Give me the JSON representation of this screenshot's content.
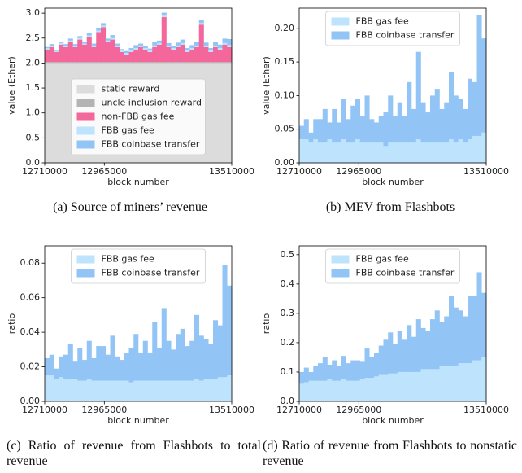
{
  "charts": [
    {
      "chart_data": {
        "type": "histogram",
        "caption": "(a) Source of miners’ revenue",
        "xlabel": "block number",
        "ylabel": "value (Ether)",
        "legend": "lower center",
        "bins": [
          12710000,
          12730000,
          12750000,
          12770000,
          12790000,
          12810000,
          12830000,
          12850000,
          12870000,
          12890000,
          12910000,
          12930000,
          12950000,
          12970000,
          12990000,
          13010000,
          13030000,
          13050000,
          13070000,
          13090000,
          13110000,
          13130000,
          13150000,
          13170000,
          13190000,
          13210000,
          13230000,
          13250000,
          13270000,
          13290000,
          13310000,
          13330000,
          13350000,
          13370000,
          13390000,
          13410000,
          13430000,
          13450000,
          13470000,
          13490000,
          13510000
        ],
        "xlim": [
          12710000,
          13510000
        ],
        "xticks": [
          12710000,
          12965000,
          13510000
        ],
        "ylim": [
          0,
          3.1
        ],
        "yticks": [
          {
            "value": 0,
            "label": "0.0"
          },
          {
            "value": 0.5,
            "label": "0.5"
          },
          {
            "value": 1,
            "label": "1.0"
          },
          {
            "value": 1.5,
            "label": "1.5"
          },
          {
            "value": 2,
            "label": "2.0"
          },
          {
            "value": 2.5,
            "label": "2.5"
          },
          {
            "value": 3,
            "label": "3.0"
          }
        ],
        "series": [
          {
            "name": "static reward",
            "color": "#dcdcdc",
            "values": [
              2,
              2,
              2,
              2,
              2,
              2,
              2,
              2,
              2,
              2,
              2,
              2,
              2,
              2,
              2,
              2,
              2,
              2,
              2,
              2,
              2,
              2,
              2,
              2,
              2,
              2,
              2,
              2,
              2,
              2,
              2,
              2,
              2,
              2,
              2,
              2,
              2,
              2,
              2,
              2
            ]
          },
          {
            "name": "uncle inclusion reward",
            "color": "#b4b4b4",
            "values": [
              0.02,
              0.02,
              0.02,
              0.02,
              0.02,
              0.02,
              0.02,
              0.02,
              0.02,
              0.02,
              0.02,
              0.02,
              0.02,
              0.02,
              0.02,
              0.02,
              0.02,
              0.02,
              0.02,
              0.02,
              0.02,
              0.02,
              0.02,
              0.02,
              0.02,
              0.02,
              0.02,
              0.02,
              0.02,
              0.02,
              0.02,
              0.02,
              0.02,
              0.02,
              0.02,
              0.02,
              0.02,
              0.02,
              0.02,
              0.02
            ]
          },
          {
            "name": "non-FBB gas fee",
            "color": "#f4679a",
            "values": [
              0.25,
              0.3,
              0.2,
              0.35,
              0.3,
              0.4,
              0.3,
              0.45,
              0.35,
              0.5,
              0.3,
              0.6,
              0.7,
              0.4,
              0.45,
              0.3,
              0.2,
              0.15,
              0.2,
              0.25,
              0.3,
              0.25,
              0.2,
              0.3,
              0.35,
              0.9,
              0.3,
              0.25,
              0.3,
              0.35,
              0.2,
              0.25,
              0.3,
              0.75,
              0.3,
              0.2,
              0.3,
              0.25,
              0.35,
              0.3
            ]
          },
          {
            "name": "FBB gas fee",
            "color": "#bde3fd",
            "values": [
              0.03,
              0.03,
              0.02,
              0.03,
              0.03,
              0.03,
              0.03,
              0.03,
              0.02,
              0.03,
              0.03,
              0.03,
              0.03,
              0.03,
              0.03,
              0.03,
              0.03,
              0.03,
              0.03,
              0.03,
              0.03,
              0.03,
              0.03,
              0.03,
              0.03,
              0.03,
              0.03,
              0.03,
              0.03,
              0.03,
              0.03,
              0.03,
              0.03,
              0.03,
              0.03,
              0.03,
              0.03,
              0.03,
              0.03,
              0.04
            ]
          },
          {
            "name": "FBB coinbase transfer",
            "color": "#92c5f5",
            "values": [
              0.02,
              0.03,
              0.02,
              0.03,
              0.03,
              0.04,
              0.03,
              0.04,
              0.03,
              0.05,
              0.04,
              0.05,
              0.05,
              0.04,
              0.06,
              0.04,
              0.03,
              0.04,
              0.05,
              0.06,
              0.04,
              0.05,
              0.04,
              0.07,
              0.05,
              0.06,
              0.05,
              0.04,
              0.06,
              0.07,
              0.05,
              0.06,
              0.08,
              0.07,
              0.06,
              0.05,
              0.08,
              0.07,
              0.09,
              0.12
            ]
          }
        ]
      }
    },
    {
      "chart_data": {
        "type": "histogram",
        "caption": "(b) MEV from Flashbots",
        "xlabel": "block number",
        "ylabel": "value (Ether)",
        "legend": "upper center",
        "bins": [
          12710000,
          12730000,
          12750000,
          12770000,
          12790000,
          12810000,
          12830000,
          12850000,
          12870000,
          12890000,
          12910000,
          12930000,
          12950000,
          12970000,
          12990000,
          13010000,
          13030000,
          13050000,
          13070000,
          13090000,
          13110000,
          13130000,
          13150000,
          13170000,
          13190000,
          13210000,
          13230000,
          13250000,
          13270000,
          13290000,
          13310000,
          13330000,
          13350000,
          13370000,
          13390000,
          13410000,
          13430000,
          13450000,
          13470000,
          13490000,
          13510000
        ],
        "xlim": [
          12710000,
          13510000
        ],
        "xticks": [
          12710000,
          12965000,
          13510000
        ],
        "ylim": [
          0,
          0.23
        ],
        "yticks": [
          {
            "value": 0,
            "label": "0.00"
          },
          {
            "value": 0.05,
            "label": "0.05"
          },
          {
            "value": 0.1,
            "label": "0.10"
          },
          {
            "value": 0.15,
            "label": "0.15"
          },
          {
            "value": 0.2,
            "label": "0.20"
          }
        ],
        "series": [
          {
            "name": "FBB gas fee",
            "color": "#bde3fd",
            "values": [
              0.035,
              0.035,
              0.03,
              0.035,
              0.03,
              0.03,
              0.035,
              0.03,
              0.03,
              0.035,
              0.03,
              0.03,
              0.035,
              0.03,
              0.03,
              0.03,
              0.03,
              0.03,
              0.025,
              0.03,
              0.03,
              0.03,
              0.03,
              0.03,
              0.03,
              0.035,
              0.03,
              0.03,
              0.03,
              0.03,
              0.03,
              0.03,
              0.035,
              0.03,
              0.035,
              0.03,
              0.035,
              0.04,
              0.04,
              0.045
            ]
          },
          {
            "name": "FBB coinbase transfer",
            "color": "#92c5f5",
            "values": [
              0.02,
              0.03,
              0.015,
              0.03,
              0.035,
              0.05,
              0.025,
              0.05,
              0.03,
              0.06,
              0.035,
              0.055,
              0.06,
              0.04,
              0.07,
              0.035,
              0.03,
              0.04,
              0.05,
              0.07,
              0.04,
              0.06,
              0.04,
              0.09,
              0.05,
              0.13,
              0.06,
              0.045,
              0.07,
              0.08,
              0.05,
              0.06,
              0.1,
              0.07,
              0.06,
              0.05,
              0.09,
              0.08,
              0.18,
              0.14
            ]
          }
        ]
      }
    },
    {
      "chart_data": {
        "type": "histogram",
        "caption": "(c) Ratio of revenue from Flashbots to total revenue",
        "xlabel": "block number",
        "ylabel": "ratio",
        "legend": "upper center",
        "bins": [
          12710000,
          12730000,
          12750000,
          12770000,
          12790000,
          12810000,
          12830000,
          12850000,
          12870000,
          12890000,
          12910000,
          12930000,
          12950000,
          12970000,
          12990000,
          13010000,
          13030000,
          13050000,
          13070000,
          13090000,
          13110000,
          13130000,
          13150000,
          13170000,
          13190000,
          13210000,
          13230000,
          13250000,
          13270000,
          13290000,
          13310000,
          13330000,
          13350000,
          13370000,
          13390000,
          13410000,
          13430000,
          13450000,
          13470000,
          13490000,
          13510000
        ],
        "xlim": [
          12710000,
          13510000
        ],
        "xticks": [
          12710000,
          12965000,
          13510000
        ],
        "ylim": [
          0,
          0.09
        ],
        "yticks": [
          {
            "value": 0,
            "label": "0.00"
          },
          0.02,
          0.04,
          0.06,
          0.08
        ],
        "series": [
          {
            "name": "FBB gas fee",
            "color": "#bde3fd",
            "values": [
              0.015,
              0.015,
              0.013,
              0.014,
              0.013,
              0.013,
              0.013,
              0.012,
              0.012,
              0.013,
              0.012,
              0.012,
              0.012,
              0.012,
              0.012,
              0.012,
              0.012,
              0.012,
              0.011,
              0.012,
              0.012,
              0.012,
              0.012,
              0.012,
              0.012,
              0.012,
              0.012,
              0.012,
              0.012,
              0.012,
              0.012,
              0.012,
              0.013,
              0.012,
              0.013,
              0.013,
              0.013,
              0.014,
              0.014,
              0.015
            ]
          },
          {
            "name": "FBB coinbase transfer",
            "color": "#92c5f5",
            "values": [
              0.01,
              0.012,
              0.006,
              0.012,
              0.014,
              0.02,
              0.01,
              0.019,
              0.012,
              0.022,
              0.013,
              0.02,
              0.02,
              0.015,
              0.026,
              0.014,
              0.012,
              0.016,
              0.02,
              0.027,
              0.016,
              0.023,
              0.016,
              0.034,
              0.019,
              0.042,
              0.023,
              0.018,
              0.027,
              0.03,
              0.02,
              0.023,
              0.037,
              0.026,
              0.023,
              0.02,
              0.034,
              0.03,
              0.065,
              0.052
            ]
          }
        ]
      }
    },
    {
      "chart_data": {
        "type": "histogram",
        "caption": "(d) Ratio of revenue from Flashbots to nonstatic revenue",
        "xlabel": "block number",
        "ylabel": "ratio",
        "legend": "upper center",
        "bins": [
          12710000,
          12730000,
          12750000,
          12770000,
          12790000,
          12810000,
          12830000,
          12850000,
          12870000,
          12890000,
          12910000,
          12930000,
          12950000,
          12970000,
          12990000,
          13010000,
          13030000,
          13050000,
          13070000,
          13090000,
          13110000,
          13130000,
          13150000,
          13170000,
          13190000,
          13210000,
          13230000,
          13250000,
          13270000,
          13290000,
          13310000,
          13330000,
          13350000,
          13370000,
          13390000,
          13410000,
          13430000,
          13450000,
          13470000,
          13490000,
          13510000
        ],
        "xlim": [
          12710000,
          13510000
        ],
        "xticks": [
          12710000,
          12965000,
          13510000
        ],
        "ylim": [
          0,
          0.53
        ],
        "yticks": [
          {
            "value": 0,
            "label": "0.0"
          },
          0.1,
          0.2,
          0.3,
          0.4,
          0.5
        ],
        "series": [
          {
            "name": "FBB gas fee",
            "color": "#bde3fd",
            "values": [
              0.06,
              0.065,
              0.07,
              0.07,
              0.07,
              0.07,
              0.075,
              0.07,
              0.07,
              0.075,
              0.07,
              0.07,
              0.07,
              0.075,
              0.08,
              0.08,
              0.085,
              0.09,
              0.09,
              0.095,
              0.095,
              0.1,
              0.1,
              0.1,
              0.1,
              0.1,
              0.11,
              0.11,
              0.11,
              0.11,
              0.12,
              0.12,
              0.12,
              0.12,
              0.13,
              0.13,
              0.13,
              0.14,
              0.14,
              0.15
            ]
          },
          {
            "name": "FBB coinbase transfer",
            "color": "#92c5f5",
            "values": [
              0.04,
              0.05,
              0.03,
              0.05,
              0.06,
              0.08,
              0.05,
              0.07,
              0.05,
              0.08,
              0.06,
              0.07,
              0.07,
              0.06,
              0.1,
              0.07,
              0.08,
              0.1,
              0.12,
              0.14,
              0.1,
              0.14,
              0.11,
              0.16,
              0.12,
              0.18,
              0.14,
              0.13,
              0.17,
              0.2,
              0.15,
              0.17,
              0.24,
              0.2,
              0.18,
              0.16,
              0.23,
              0.22,
              0.3,
              0.22
            ]
          }
        ]
      }
    }
  ]
}
